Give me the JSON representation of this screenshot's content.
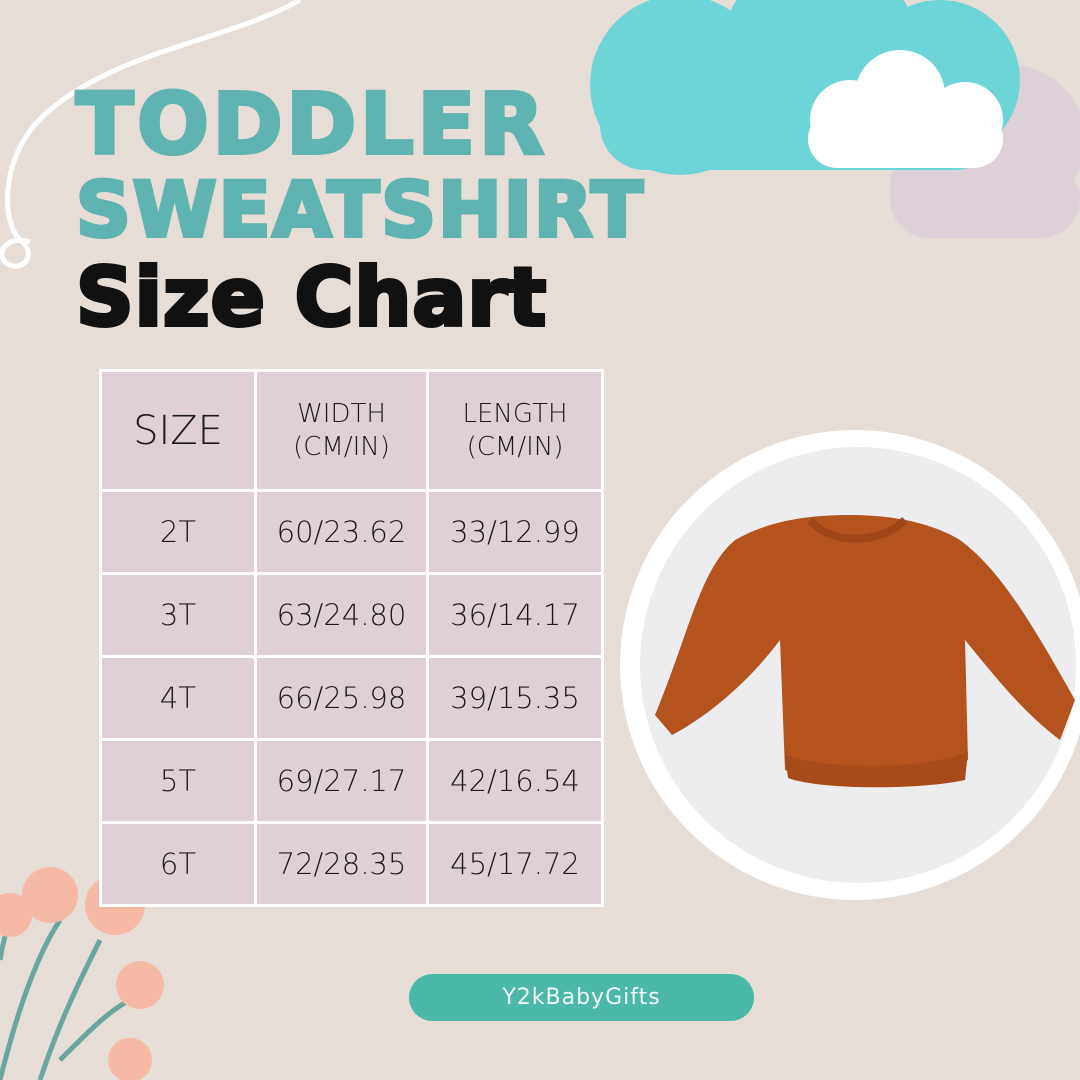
{
  "title": {
    "line1": "TODDLER",
    "line2": "SWEATSHIRT",
    "line3": "Size Chart"
  },
  "table": {
    "headers": [
      "SIZE",
      "WIDTH (CM/IN)",
      "LENGTH (CM/IN)"
    ],
    "header_lines": {
      "width_1": "WIDTH",
      "width_2": "(CM/IN)",
      "length_1": "LENGTH",
      "length_2": "(CM/IN)"
    },
    "rows": [
      [
        "2T",
        "60/23.62",
        "33/12.99"
      ],
      [
        "3T",
        "63/24.80",
        "36/14.17"
      ],
      [
        "4T",
        "66/25.98",
        "39/15.35"
      ],
      [
        "5T",
        "69/27.17",
        "42/16.54"
      ],
      [
        "6T",
        "72/28.35",
        "45/17.72"
      ]
    ]
  },
  "brand": "Y2kBabyGifts",
  "colors": {
    "background": "#e6ddd6",
    "teal_title": "#5fb3b0",
    "cell": "#dfd0d8",
    "brand_pill": "#4bb8a8",
    "cloud": "#6dd5d8",
    "sweatshirt": "#b5531f"
  }
}
